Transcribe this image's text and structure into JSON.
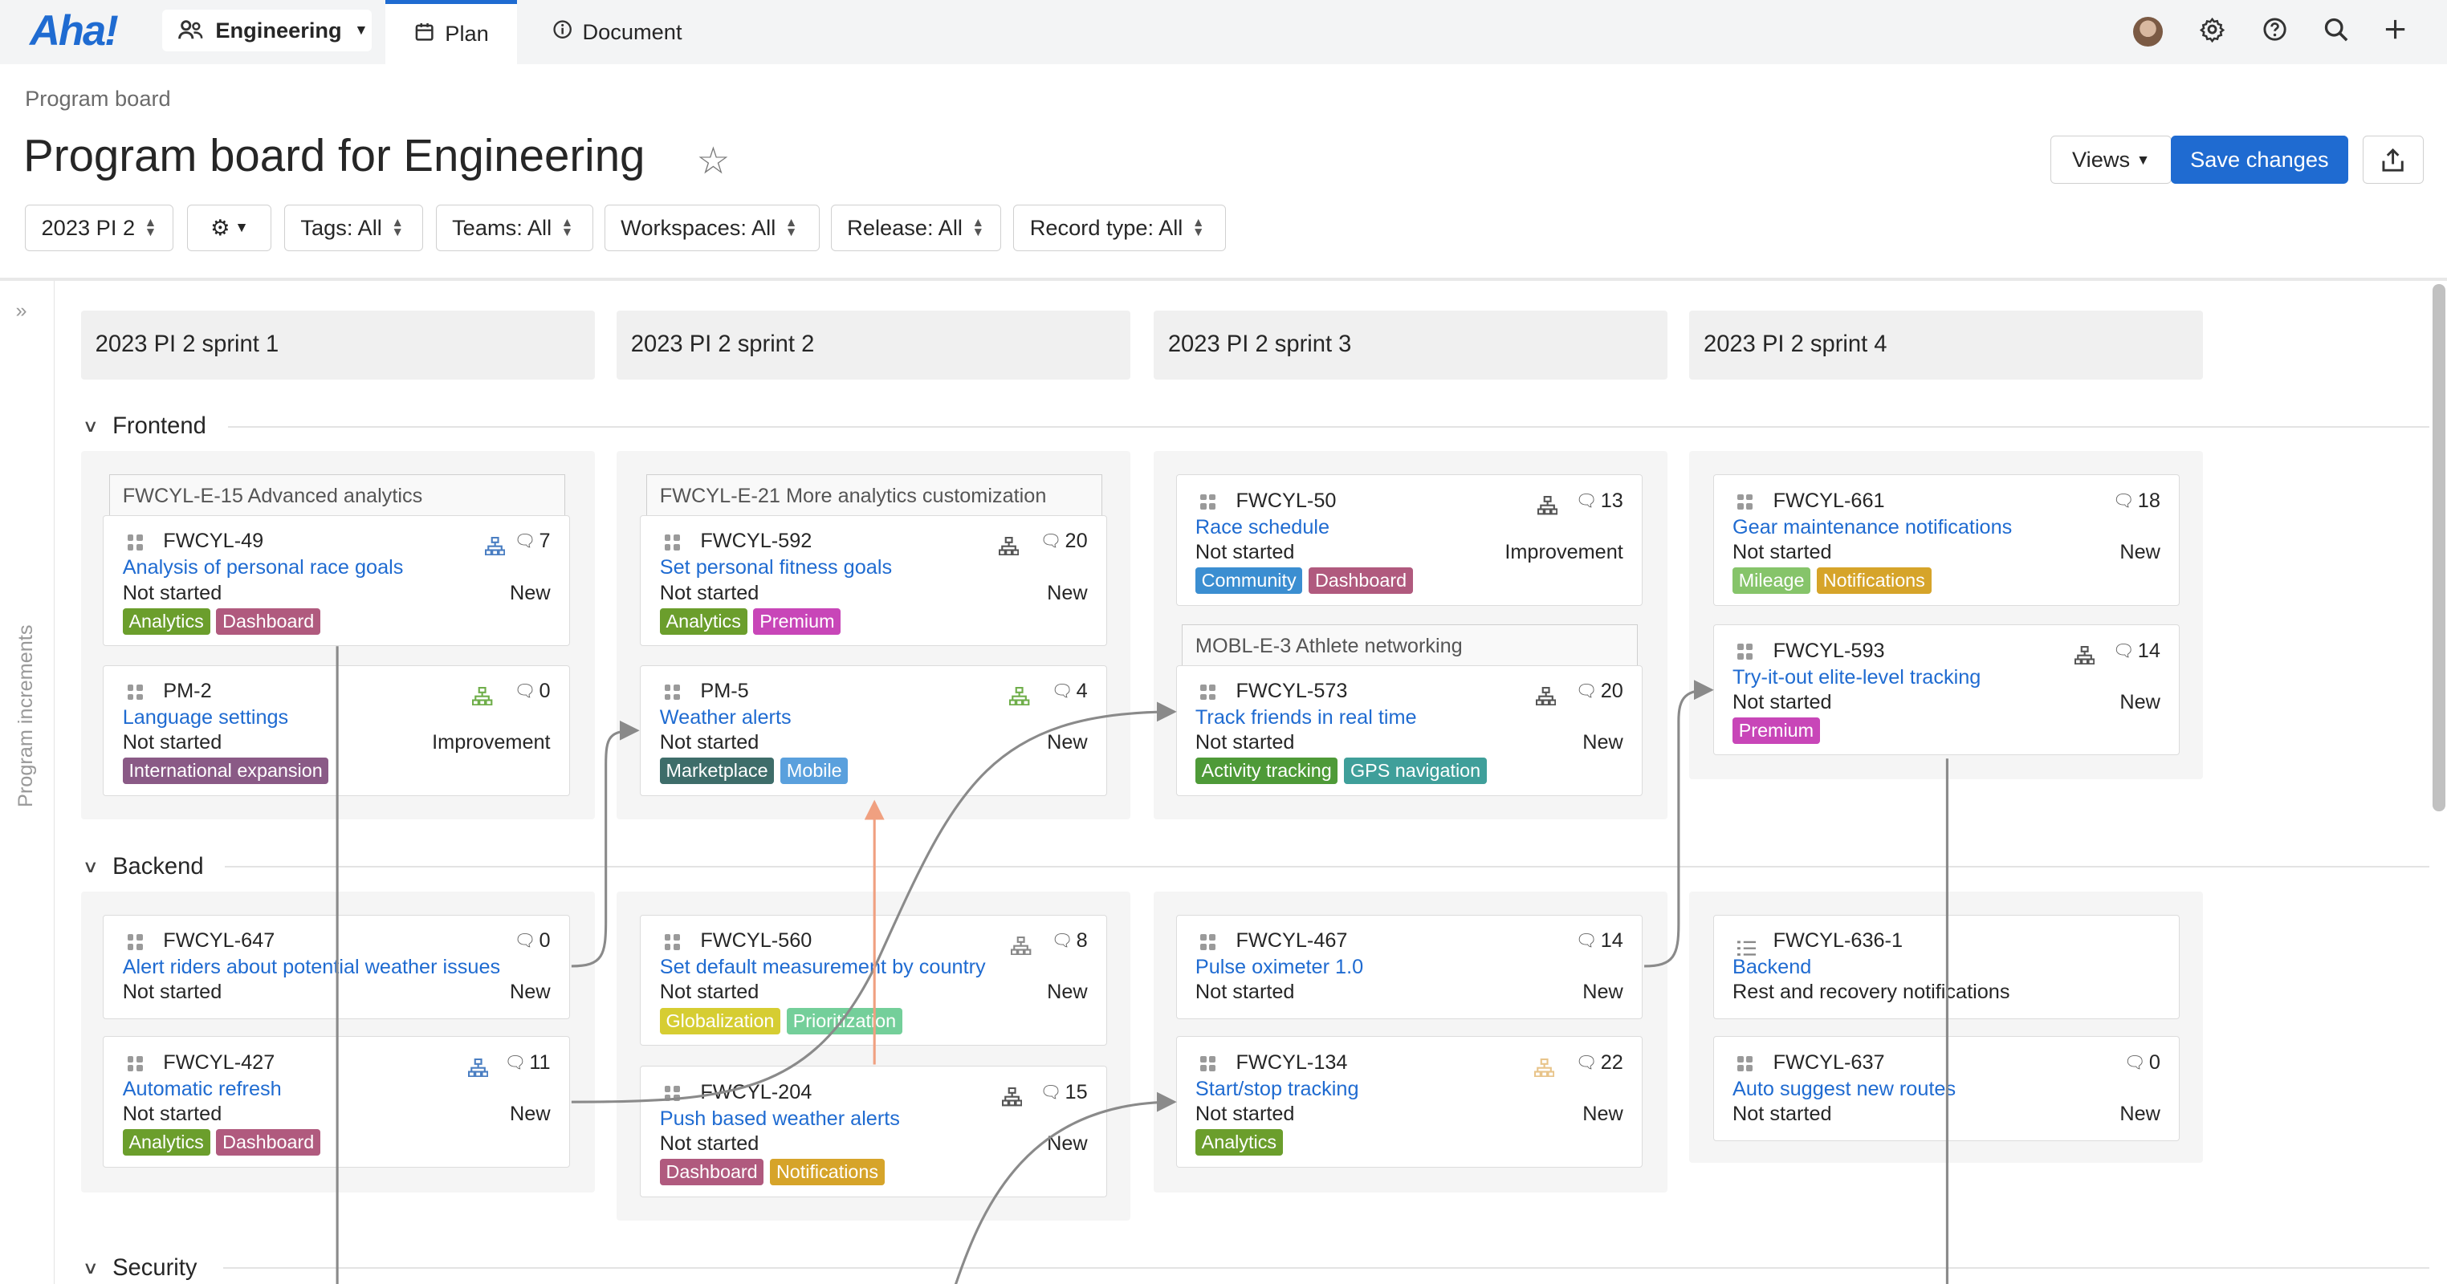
{
  "logo": "Aha!",
  "nav": {
    "workspace": "Engineering",
    "plan": "Plan",
    "document": "Document"
  },
  "header": {
    "breadcrumb": "Program board",
    "title": "Program board for Engineering",
    "views": "Views",
    "save": "Save changes"
  },
  "filters": {
    "increment": "2023 PI 2",
    "tags": "Tags: All",
    "teams": "Teams: All",
    "workspaces": "Workspaces: All",
    "release": "Release: All",
    "record_type": "Record type: All"
  },
  "side_label": "Program increments",
  "sprints": [
    "2023 PI 2 sprint 1",
    "2023 PI 2 sprint 2",
    "2023 PI 2 sprint 3",
    "2023 PI 2 sprint 4"
  ],
  "sections": [
    "Frontend",
    "Backend",
    "Security"
  ],
  "epics": [
    "FWCYL-E-15 Advanced analytics",
    "FWCYL-E-21 More analytics customization",
    "MOBL-E-3 Athlete networking"
  ],
  "tag_colors": {
    "Analytics": "#6b9e2c",
    "Dashboard": "#b05a7e",
    "International expansion": "#8a5a86",
    "Premium": "#c846b8",
    "Marketplace": "#3e6d6a",
    "Mobile": "#5aa0dd",
    "Community": "#3b8ed1",
    "Mileage": "#86c46a",
    "Notifications": "#d6a42a",
    "Activity tracking": "#4e9a38",
    "GPS navigation": "#3f9f9a",
    "Globalization": "#d6cd32",
    "Prioritization": "#74cf9a"
  },
  "cards": [
    {
      "id": "FWCYL-49",
      "title": "Analysis of personal race goals",
      "status": "Not started",
      "type": "New",
      "count": "7",
      "tags": [
        "Analytics",
        "Dashboard"
      ]
    },
    {
      "id": "PM-2",
      "title": "Language settings",
      "status": "Not started",
      "type": "Improvement",
      "count": "0",
      "tags": [
        "International expansion"
      ]
    },
    {
      "id": "FWCYL-592",
      "title": "Set personal fitness goals",
      "status": "Not started",
      "type": "New",
      "count": "20",
      "tags": [
        "Analytics",
        "Premium"
      ]
    },
    {
      "id": "PM-5",
      "title": "Weather alerts",
      "status": "Not started",
      "type": "New",
      "count": "4",
      "tags": [
        "Marketplace",
        "Mobile"
      ]
    },
    {
      "id": "FWCYL-50",
      "title": "Race schedule",
      "status": "Not started",
      "type": "Improvement",
      "count": "13",
      "tags": [
        "Community",
        "Dashboard"
      ]
    },
    {
      "id": "FWCYL-573",
      "title": "Track friends in real time",
      "status": "Not started",
      "type": "New",
      "count": "20",
      "tags": [
        "Activity tracking",
        "GPS navigation"
      ]
    },
    {
      "id": "FWCYL-661",
      "title": "Gear maintenance notifications",
      "status": "Not started",
      "type": "New",
      "count": "18",
      "tags": [
        "Mileage",
        "Notifications"
      ]
    },
    {
      "id": "FWCYL-593",
      "title": "Try-it-out elite-level tracking",
      "status": "Not started",
      "type": "New",
      "count": "14",
      "tags": [
        "Premium"
      ]
    },
    {
      "id": "FWCYL-647",
      "title": "Alert riders about potential weather issues",
      "status": "Not started",
      "type": "New",
      "count": "0",
      "tags": []
    },
    {
      "id": "FWCYL-427",
      "title": "Automatic refresh",
      "status": "Not started",
      "type": "New",
      "count": "11",
      "tags": [
        "Analytics",
        "Dashboard"
      ]
    },
    {
      "id": "FWCYL-560",
      "title": "Set default measurement by country",
      "status": "Not started",
      "type": "New",
      "count": "8",
      "tags": [
        "Globalization",
        "Prioritization"
      ]
    },
    {
      "id": "FWCYL-204",
      "title": "Push based weather alerts",
      "status": "Not started",
      "type": "New",
      "count": "15",
      "tags": [
        "Dashboard",
        "Notifications"
      ]
    },
    {
      "id": "FWCYL-467",
      "title": "Pulse oximeter 1.0",
      "status": "Not started",
      "type": "New",
      "count": "14",
      "tags": []
    },
    {
      "id": "FWCYL-134",
      "title": "Start/stop tracking",
      "status": "Not started",
      "type": "New",
      "count": "22",
      "tags": [
        "Analytics"
      ]
    },
    {
      "id": "FWCYL-636-1",
      "title": "Backend",
      "status": "Rest and recovery notifications",
      "type": "",
      "count": "",
      "tags": []
    },
    {
      "id": "FWCYL-637",
      "title": "Auto suggest new routes",
      "status": "Not started",
      "type": "New",
      "count": "0",
      "tags": []
    }
  ]
}
